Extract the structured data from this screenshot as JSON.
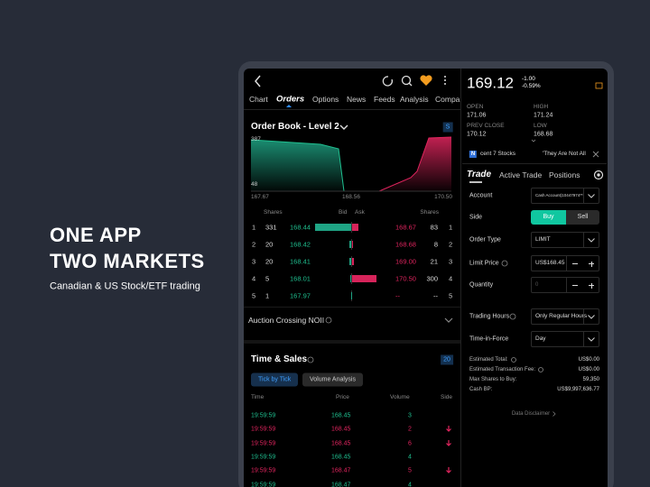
{
  "promo": {
    "headline": [
      "ONE APP",
      "TWO MARKETS"
    ],
    "subtitle": "Canadian & US Stock/ETF trading"
  },
  "nav": {
    "tabs": [
      "Chart",
      "Orders",
      "Options",
      "News",
      "Feeds",
      "Analysis",
      "Compa"
    ]
  },
  "order_book": {
    "title": "Order Book - Level 2",
    "badge": "S",
    "depth_y_labels": [
      "387",
      "48"
    ],
    "depth_x_labels": [
      "167.67",
      "168.56",
      "170.50"
    ],
    "headers": [
      "Shares",
      "Bid",
      "Ask",
      "Shares"
    ],
    "rows": [
      {
        "level": 1,
        "bid_shares": 331,
        "bid": "168.44",
        "ask": "168.67",
        "ask_shares": 83,
        "ask_level": 1
      },
      {
        "level": 2,
        "bid_shares": 20,
        "bid": "168.42",
        "ask": "168.68",
        "ask_shares": 8,
        "ask_level": 2
      },
      {
        "level": 3,
        "bid_shares": 20,
        "bid": "168.41",
        "ask": "169.00",
        "ask_shares": 21,
        "ask_level": 3
      },
      {
        "level": 4,
        "bid_shares": 5,
        "bid": "168.01",
        "ask": "170.50",
        "ask_shares": 300,
        "ask_level": 4
      },
      {
        "level": 5,
        "bid_shares": 1,
        "bid": "167.97",
        "ask": "--",
        "ask_shares": "--",
        "ask_level": 5
      }
    ]
  },
  "auction": {
    "title": "Auction Crossing NOII"
  },
  "time_sales": {
    "title": "Time & Sales",
    "badge": "20",
    "buttons": [
      "Tick by Tick",
      "Volume Analysis"
    ],
    "headers": [
      "Time",
      "Price",
      "Volume",
      "Side"
    ],
    "rows": [
      {
        "time": "19:59:59",
        "price": "168.45",
        "volume": 3,
        "color": "#1fbf8f"
      },
      {
        "time": "19:59:59",
        "price": "168.45",
        "volume": 2,
        "color": "#e0245e"
      },
      {
        "time": "19:59:59",
        "price": "168.45",
        "volume": 6,
        "color": "#e0245e"
      },
      {
        "time": "19:59:59",
        "price": "168.45",
        "volume": 4,
        "color": "#1fbf8f"
      },
      {
        "time": "19:59:59",
        "price": "168.47",
        "volume": 5,
        "color": "#e0245e"
      },
      {
        "time": "19:59:59",
        "price": "168.47",
        "volume": 4,
        "color": "#1fbf8f"
      }
    ]
  },
  "quote": {
    "price": "169.12",
    "change": "-1.00",
    "change_pct": "-0.59%",
    "stats": [
      {
        "label": "OPEN",
        "value": "171.06"
      },
      {
        "label": "HIGH",
        "value": "171.24"
      },
      {
        "label": "PREV CLOSE",
        "value": "170.12"
      },
      {
        "label": "LOW",
        "value": "168.68"
      }
    ]
  },
  "news": {
    "badge": "N",
    "items": [
      "cent 7 Stocks",
      "'They Are Not All"
    ]
  },
  "trade": {
    "tabs": [
      "Trade",
      "Active Trade",
      "Positions"
    ],
    "fields": [
      {
        "label": "Account",
        "value": "Cash Account(10447974**)"
      },
      {
        "label": "Side",
        "options": [
          "Buy",
          "Sell"
        ]
      },
      {
        "label": "Order Type",
        "value": "LIMIT"
      },
      {
        "label": "Limit Price",
        "value": "US$168.45"
      },
      {
        "label": "Quantity",
        "placeholder": "0"
      },
      {
        "label": "Trading Hours",
        "value": "Only Regular Hours"
      },
      {
        "label": "Time-in-Force",
        "value": "Day"
      }
    ],
    "summary": [
      {
        "label": "Estimated Total:",
        "value": "US$0.00"
      },
      {
        "label": "Estimated Transaction Fee:",
        "value": "US$0.00"
      },
      {
        "label": "Max Shares to Buy:",
        "value": "59,350"
      },
      {
        "label": "Cash BP:",
        "value": "US$9,997,636.77"
      }
    ],
    "disclaimer": "Data Disclaimer"
  }
}
